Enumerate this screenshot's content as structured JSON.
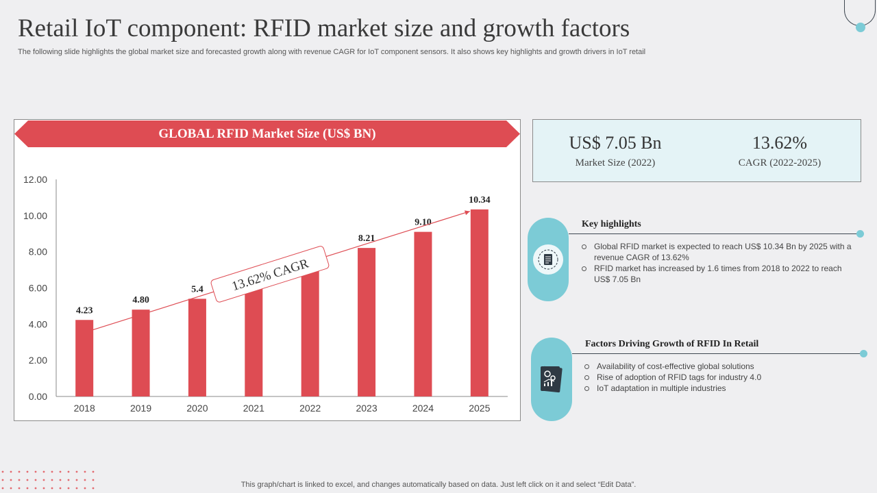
{
  "header": {
    "title": "Retail IoT component: RFID market size and growth factors",
    "subtitle": "The following slide highlights the global market size and forecasted growth along with revenue CAGR for IoT  component sensors. It also shows key highlights and growth drivers in IoT retail"
  },
  "chart_banner": "GLOBAL RFID Market Size (US$ BN)",
  "chart_data": {
    "type": "bar",
    "title": "GLOBAL RFID Market Size (US$ BN)",
    "categories": [
      "2018",
      "2019",
      "2020",
      "2021",
      "2022",
      "2023",
      "2024",
      "2025"
    ],
    "values": [
      4.23,
      4.8,
      5.4,
      5.95,
      7.05,
      8.21,
      9.1,
      10.34
    ],
    "data_labels": [
      "4.23",
      "4.80",
      "5.4",
      "",
      "",
      "8.21",
      "9.10",
      "10.34"
    ],
    "ylim": [
      0,
      12
    ],
    "yticks": [
      "0.00",
      "2.00",
      "4.00",
      "6.00",
      "8.00",
      "10.00",
      "12.00"
    ],
    "bar_color": "#de4c53",
    "grid": false,
    "annotation": "13.62% CAGR"
  },
  "stats": [
    {
      "value": "US$ 7.05 Bn",
      "label": "Market Size (2022)"
    },
    {
      "value": "13.62%",
      "label": "CAGR (2022-2025)"
    }
  ],
  "key_highlights": {
    "heading": "Key highlights",
    "icon": "document-checklist-icon",
    "items": [
      "Global RFID market is expected to reach US$ 10.34 Bn by 2025 with a revenue  CAGR of 13.62%",
      "RFID market has increased by 1.6 times from 2018 to 2022 to reach US$ 7.05 Bn"
    ]
  },
  "growth_factors": {
    "heading": "Factors Driving Growth of RFID In Retail",
    "icon": "gears-growth-icon",
    "items": [
      "Availability of cost-effective  global solutions",
      "Rise of adoption of RFID tags for industry 4.0",
      "IoT  adaptation in multiple industries"
    ]
  },
  "footer_note": "This graph/chart is linked to excel,  and changes automatically based on data. Just left click on it and select “Edit Data”.",
  "colors": {
    "accent_red": "#de4c53",
    "accent_teal": "#7ccbd6",
    "stats_bg": "#e4f3f6"
  }
}
